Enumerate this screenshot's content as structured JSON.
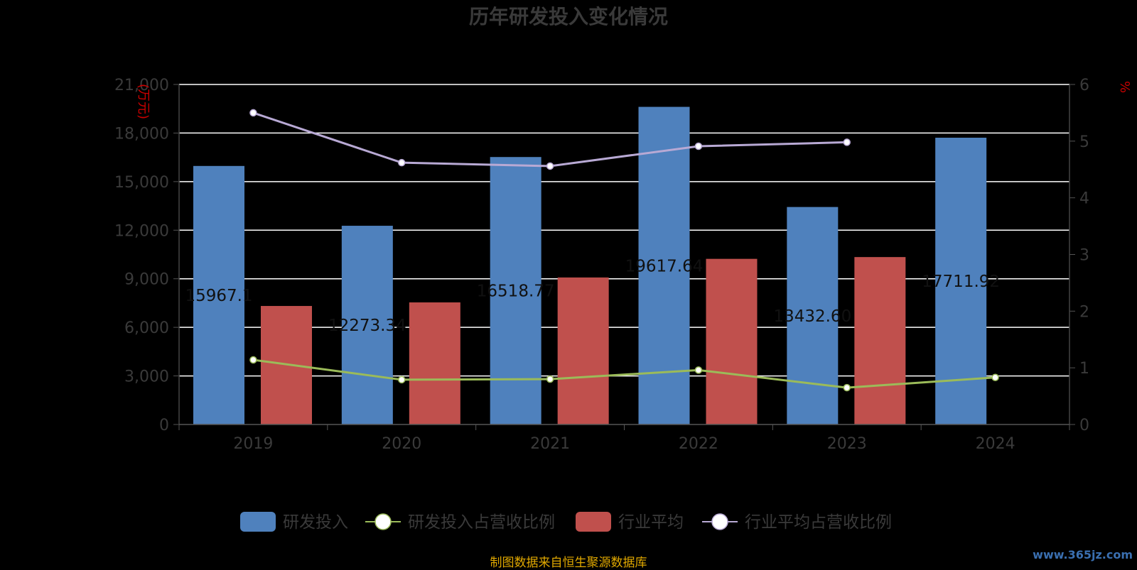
{
  "chart_data": {
    "type": "bar",
    "title": "历年研发投入变化情况",
    "categories": [
      "2019",
      "2020",
      "2021",
      "2022",
      "2023",
      "2024"
    ],
    "y_left": {
      "label": "(万元)",
      "min": 0,
      "max": 21000,
      "ticks": [
        "0",
        "3,000",
        "6,000",
        "9,000",
        "12,000",
        "15,000",
        "18,000",
        "21,000"
      ]
    },
    "y_right": {
      "label": "%",
      "min": 0,
      "max": 6,
      "ticks": [
        "0",
        "1",
        "2",
        "3",
        "4",
        "5",
        "6"
      ]
    },
    "grid": true,
    "legend_position": "bottom",
    "series": [
      {
        "name": "研发投入",
        "type": "bar",
        "axis": "left",
        "color": "#4f81bd",
        "values": [
          15967.1,
          12273.34,
          16518.77,
          19617.64,
          13432.6,
          17711.92
        ],
        "data_labels": [
          "15967.1",
          "12273.34",
          "16518.77",
          "19617.64",
          "13432.60",
          "17711.92"
        ]
      },
      {
        "name": "研发投入占营收比例",
        "type": "line",
        "axis": "right",
        "color": "#9bbb59",
        "values": [
          1.14,
          0.79,
          0.8,
          0.96,
          0.65,
          0.83
        ]
      },
      {
        "name": "行业平均",
        "type": "bar",
        "axis": "left",
        "color": "#c0504d",
        "values": [
          7320,
          7540,
          9080,
          10230,
          10340,
          null
        ]
      },
      {
        "name": "行业平均占营收比例",
        "type": "line",
        "axis": "right",
        "color": "#b8a9d4",
        "values": [
          5.5,
          4.62,
          4.56,
          4.91,
          4.98,
          null
        ]
      }
    ]
  },
  "footer": {
    "source": "制图数据来自恒生聚源数据库"
  },
  "watermark": "www.365jz.com"
}
